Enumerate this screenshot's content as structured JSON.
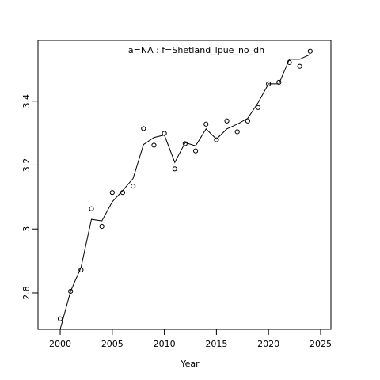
{
  "chart_data": {
    "type": "line",
    "title": "a=NA  :  f=Shetland_lpue_no_dh",
    "x_label": "Year",
    "x": [
      2000,
      2001,
      2002,
      2003,
      2004,
      2005,
      2006,
      2007,
      2008,
      2009,
      2010,
      2011,
      2012,
      2013,
      2014,
      2015,
      2016,
      2017,
      2018,
      2019,
      2020,
      2021,
      2022,
      2023,
      2024
    ],
    "series": [
      {
        "style": "points",
        "color": "#000000",
        "values": [
          2.719,
          2.805,
          2.872,
          3.063,
          3.008,
          3.114,
          3.114,
          3.134,
          3.314,
          3.262,
          3.299,
          3.188,
          3.267,
          3.244,
          3.328,
          3.279,
          3.338,
          3.304,
          3.338,
          3.38,
          3.454,
          3.459,
          3.521,
          3.509,
          3.556
        ]
      },
      {
        "style": "line",
        "color": "#000000",
        "values": [
          2.686,
          2.805,
          2.88,
          3.03,
          3.025,
          3.085,
          3.12,
          3.158,
          3.264,
          3.286,
          3.294,
          3.208,
          3.27,
          3.26,
          3.313,
          3.281,
          3.313,
          3.328,
          3.346,
          3.395,
          3.454,
          3.454,
          3.531,
          3.531,
          3.546
        ]
      }
    ],
    "xlim": [
      1997.87,
      2025.99
    ],
    "ylim": [
      2.686,
      3.59
    ],
    "xticks": [
      2000,
      2005,
      2010,
      2015,
      2020,
      2025
    ],
    "yticks": [
      2.8,
      3.0,
      3.2,
      3.4
    ],
    "title_color": "#999999"
  }
}
